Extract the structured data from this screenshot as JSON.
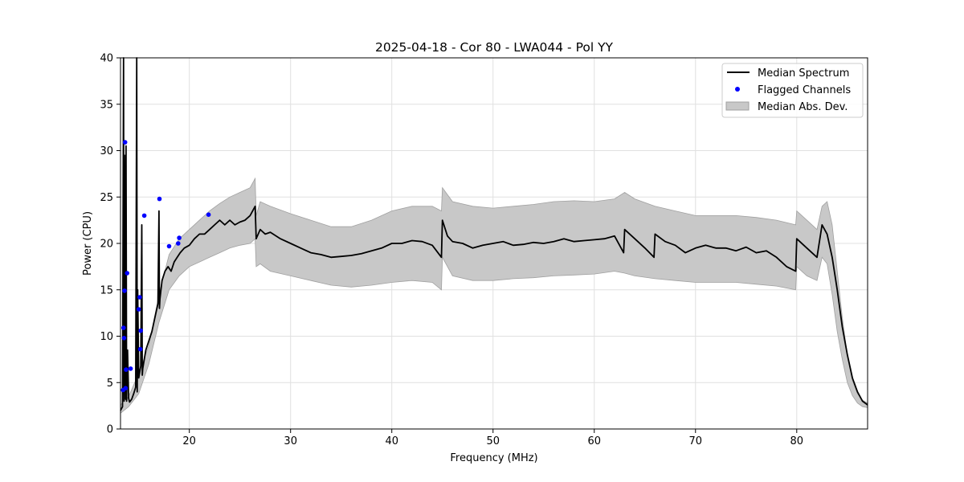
{
  "chart_data": {
    "type": "line",
    "title": "2025-04-18 - Cor 80 - LWA044 - Pol YY",
    "xlabel": "Frequency (MHz)",
    "ylabel": "Power (CPU)",
    "xlim": [
      13.2,
      87.0
    ],
    "ylim": [
      0,
      40
    ],
    "xticks": [
      20,
      30,
      40,
      50,
      60,
      70,
      80
    ],
    "yticks": [
      0,
      5,
      10,
      15,
      20,
      25,
      30,
      35,
      40
    ],
    "grid": true,
    "legend_position": "top-right",
    "colors": {
      "median": "#000000",
      "flagged": "#0000ff",
      "mad_fill": "#c8c8c8",
      "mad_edge": "#a0a0a0"
    },
    "series": [
      {
        "name": "Median Spectrum",
        "kind": "line",
        "x": [
          13.2,
          13.4,
          13.5,
          13.55,
          13.6,
          13.7,
          13.75,
          13.8,
          13.9,
          14.0,
          14.1,
          14.3,
          14.5,
          14.7,
          14.8,
          14.85,
          14.9,
          15.0,
          15.2,
          15.3,
          15.35,
          15.4,
          15.5,
          15.7,
          16.0,
          16.3,
          16.6,
          16.9,
          17.0,
          17.05,
          17.1,
          17.3,
          17.6,
          17.9,
          18.2,
          18.5,
          18.8,
          19.1,
          19.5,
          20.0,
          20.5,
          21.0,
          21.5,
          22.0,
          22.5,
          23.0,
          23.5,
          24.0,
          24.5,
          25.0,
          25.5,
          26.0,
          26.5,
          26.6,
          27.0,
          27.5,
          28.0,
          29.0,
          30.0,
          31.0,
          32.0,
          33.0,
          34.0,
          35.0,
          36.0,
          37.0,
          38.0,
          39.0,
          40.0,
          41.0,
          42.0,
          43.0,
          44.0,
          44.9,
          45.0,
          45.5,
          46.0,
          47.0,
          48.0,
          49.0,
          50.0,
          51.0,
          52.0,
          53.0,
          54.0,
          55.0,
          56.0,
          57.0,
          58.0,
          59.0,
          60.0,
          61.0,
          62.0,
          62.9,
          63.0,
          64.0,
          65.0,
          65.9,
          66.0,
          67.0,
          68.0,
          69.0,
          70.0,
          71.0,
          72.0,
          73.0,
          74.0,
          75.0,
          76.0,
          77.0,
          78.0,
          79.0,
          79.9,
          80.0,
          81.0,
          82.0,
          82.5,
          83.0,
          83.5,
          84.0,
          84.5,
          85.0,
          85.5,
          86.0,
          86.5,
          87.0
        ],
        "y": [
          2.0,
          2.4,
          40.0,
          3.0,
          29.5,
          3.2,
          30.5,
          3.0,
          8.5,
          3.3,
          2.9,
          3.2,
          3.8,
          4.5,
          40.0,
          4.0,
          15.0,
          5.5,
          6.8,
          22.0,
          5.8,
          6.5,
          7.2,
          8.5,
          9.5,
          10.5,
          12.0,
          13.5,
          23.5,
          13.0,
          14.0,
          16.0,
          17.0,
          17.5,
          17.0,
          18.0,
          18.5,
          19.0,
          19.5,
          19.8,
          20.5,
          21.0,
          21.0,
          21.5,
          22.0,
          22.5,
          22.0,
          22.5,
          22.0,
          22.3,
          22.5,
          23.0,
          24.0,
          20.5,
          21.5,
          21.0,
          21.2,
          20.5,
          20.0,
          19.5,
          19.0,
          18.8,
          18.5,
          18.6,
          18.7,
          18.9,
          19.2,
          19.5,
          20.0,
          20.0,
          20.3,
          20.2,
          19.8,
          18.5,
          22.5,
          20.8,
          20.2,
          20.0,
          19.5,
          19.8,
          20.0,
          20.2,
          19.8,
          19.9,
          20.1,
          20.0,
          20.2,
          20.5,
          20.2,
          20.3,
          20.4,
          20.5,
          20.8,
          19.0,
          21.5,
          20.5,
          19.5,
          18.5,
          21.0,
          20.2,
          19.8,
          19.0,
          19.5,
          19.8,
          19.5,
          19.5,
          19.2,
          19.6,
          19.0,
          19.2,
          18.5,
          17.5,
          17.0,
          20.5,
          19.5,
          18.5,
          22.0,
          21.0,
          18.5,
          15.0,
          11.0,
          8.0,
          5.5,
          4.0,
          3.0,
          2.6
        ]
      },
      {
        "name": "Median Abs. Dev.",
        "kind": "band",
        "x": [
          13.2,
          14.0,
          15.0,
          16.0,
          17.0,
          18.0,
          19.0,
          20.0,
          21.0,
          22.0,
          23.0,
          24.0,
          25.0,
          26.0,
          26.5,
          26.6,
          27.0,
          28.0,
          30.0,
          32.0,
          34.0,
          36.0,
          38.0,
          40.0,
          42.0,
          44.0,
          44.9,
          45.0,
          46.0,
          48.0,
          50.0,
          52.0,
          54.0,
          56.0,
          58.0,
          60.0,
          62.0,
          63.0,
          64.0,
          66.0,
          68.0,
          70.0,
          72.0,
          74.0,
          76.0,
          78.0,
          79.9,
          80.0,
          81.0,
          82.0,
          82.5,
          83.0,
          83.5,
          84.0,
          84.5,
          85.0,
          85.5,
          86.0,
          86.5,
          87.0
        ],
        "lower": [
          1.7,
          2.4,
          3.8,
          7.0,
          11.5,
          15.0,
          16.5,
          17.5,
          18.0,
          18.5,
          19.0,
          19.5,
          19.8,
          20.0,
          20.5,
          17.5,
          17.8,
          17.0,
          16.5,
          16.0,
          15.5,
          15.3,
          15.5,
          15.8,
          16.0,
          15.8,
          15.0,
          18.5,
          16.5,
          16.0,
          16.0,
          16.2,
          16.3,
          16.5,
          16.6,
          16.7,
          17.0,
          16.8,
          16.5,
          16.2,
          16.0,
          15.8,
          15.8,
          15.8,
          15.6,
          15.4,
          15.0,
          17.5,
          16.5,
          16.0,
          18.5,
          17.8,
          14.5,
          10.5,
          7.5,
          5.0,
          3.6,
          2.8,
          2.4,
          2.3
        ],
        "upper": [
          2.6,
          3.5,
          6.0,
          9.0,
          14.5,
          18.8,
          20.5,
          21.5,
          22.5,
          23.5,
          24.3,
          25.0,
          25.5,
          26.0,
          27.0,
          23.0,
          24.5,
          24.0,
          23.2,
          22.5,
          21.8,
          21.8,
          22.5,
          23.5,
          24.0,
          24.0,
          23.5,
          26.0,
          24.5,
          24.0,
          23.8,
          24.0,
          24.2,
          24.5,
          24.6,
          24.5,
          24.8,
          25.5,
          24.8,
          24.0,
          23.5,
          23.0,
          23.0,
          23.0,
          22.8,
          22.5,
          22.0,
          23.5,
          22.5,
          21.5,
          24.0,
          24.5,
          22.0,
          17.0,
          12.0,
          8.0,
          5.2,
          3.8,
          3.1,
          2.8
        ]
      },
      {
        "name": "Flagged Channels",
        "kind": "scatter",
        "x": [
          13.45,
          13.5,
          13.55,
          13.6,
          13.65,
          13.7,
          13.75,
          13.85,
          14.2,
          15.0,
          15.1,
          15.15,
          15.2,
          15.55,
          17.05,
          18.0,
          18.9,
          19.0,
          21.9
        ],
        "y": [
          4.2,
          10.9,
          9.8,
          14.9,
          30.9,
          4.4,
          6.4,
          16.8,
          6.5,
          12.9,
          14.2,
          8.6,
          10.6,
          23.0,
          24.8,
          19.7,
          20.0,
          20.6,
          23.1
        ]
      }
    ]
  }
}
